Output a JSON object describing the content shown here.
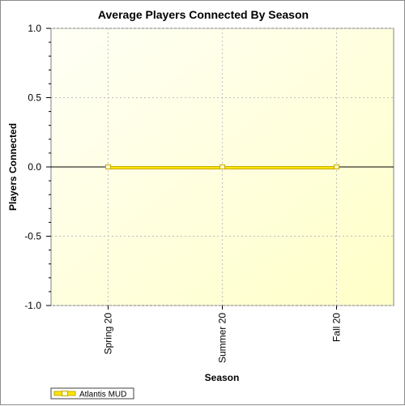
{
  "chart_data": {
    "type": "line",
    "title": "Average Players Connected By Season",
    "xlabel": "Season",
    "ylabel": "Players Connected",
    "categories": [
      "Spring 20",
      "Summer 20",
      "Fall 20"
    ],
    "series": [
      {
        "name": "Atlantis MUD",
        "values": [
          0,
          0,
          0
        ]
      }
    ],
    "ylim": [
      -1.0,
      1.0
    ],
    "yticks": [
      "1.0",
      "0.5",
      "0.0",
      "-0.5",
      "-1.0"
    ],
    "grid": true,
    "legend_position": "bottom-left",
    "colors": {
      "series_line": "#c8a800",
      "series_fill": "#ffe600",
      "marker_fill": "#ffffcc",
      "plot_bg_light": "#fffff2",
      "plot_bg_dark": "#ffffc8",
      "grid": "#c0c0c0",
      "zero_line": "#000000"
    }
  }
}
